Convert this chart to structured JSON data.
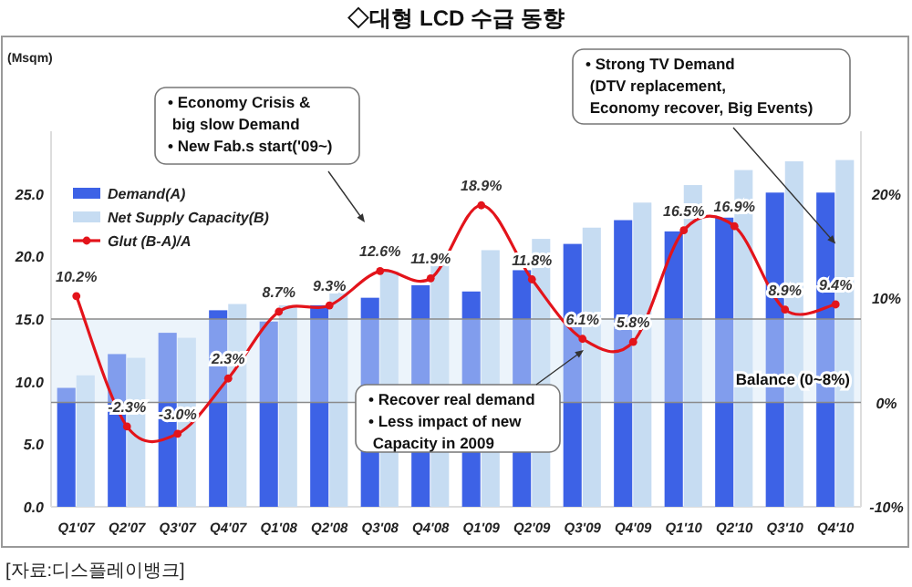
{
  "chart_data": {
    "type": "bar",
    "title": "◇대형 LCD 수급 동향",
    "categories": [
      "Q1'07",
      "Q2'07",
      "Q3'07",
      "Q4'07",
      "Q1'08",
      "Q2'08",
      "Q3'08",
      "Q4'08",
      "Q1'09",
      "Q2'09",
      "Q3'09",
      "Q4'09",
      "Q1'10",
      "Q2'10",
      "Q3'10",
      "Q4'10"
    ],
    "series": [
      {
        "name": "Demand(A)",
        "type": "bar",
        "color": "#3d62e6",
        "values": [
          9.5,
          12.2,
          13.9,
          15.7,
          14.8,
          16.1,
          16.7,
          17.7,
          17.2,
          18.9,
          21.0,
          22.9,
          22.0,
          23.1,
          25.1,
          25.1
        ]
      },
      {
        "name": "Net Supply Capacity(B)",
        "type": "bar",
        "color": "#c6dcf2",
        "values": [
          10.5,
          11.9,
          13.5,
          16.2,
          16.1,
          17.6,
          18.8,
          19.8,
          20.5,
          21.4,
          22.3,
          24.3,
          25.7,
          26.9,
          27.6,
          27.7
        ]
      },
      {
        "name": "Glut (B-A)/A",
        "type": "line",
        "axis": "y2",
        "color": "#e3141b",
        "marker": "circle",
        "values": [
          10.2,
          -2.3,
          -3.0,
          2.3,
          8.7,
          9.3,
          12.6,
          11.9,
          18.9,
          11.8,
          6.1,
          5.8,
          16.5,
          16.9,
          8.9,
          9.4
        ],
        "value_labels": [
          "10.2%",
          "-2.3%",
          "-3.0%",
          "2.3%",
          "8.7%",
          "9.3%",
          "12.6%",
          "11.9%",
          "18.9%",
          "11.8%",
          "6.1%",
          "5.8%",
          "16.5%",
          "16.9%",
          "8.9%",
          "9.4%"
        ]
      }
    ],
    "ylim": [
      0,
      30
    ],
    "yticks": [
      {
        "value": 0,
        "label": "0.0"
      },
      {
        "value": 5,
        "label": "5.0"
      },
      {
        "value": 10,
        "label": "10.0"
      },
      {
        "value": 15,
        "label": "15.0"
      },
      {
        "value": 20,
        "label": "20.0"
      },
      {
        "value": 25,
        "label": "25.0"
      }
    ],
    "y2lim": [
      -10,
      26
    ],
    "y2ticks": [
      {
        "value": -10,
        "label": "-10%"
      },
      {
        "value": 0,
        "label": "0%"
      },
      {
        "value": 10,
        "label": "10%"
      },
      {
        "value": 20,
        "label": "20%"
      }
    ],
    "bands": [
      {
        "axis": "y2",
        "from": 0,
        "to": 8,
        "label": "Balance (0~8%)",
        "color": "#d4e6f7"
      }
    ],
    "legend": "top left",
    "annotations": [
      "• Economy Crisis &\n  big slow Demand\n• New Fab.s start('09~)",
      {
        "text": "• Strong TV Demand\n  (DTV replacement,\n   Economy recover, Big Events)",
        "x": "Q4'10",
        "y": 21
      },
      "• Recover real demand\n• Less impact of new\n  Capacity in 2009",
      "(Msqm)",
      "[자료:디스플레이뱅크]"
    ]
  }
}
